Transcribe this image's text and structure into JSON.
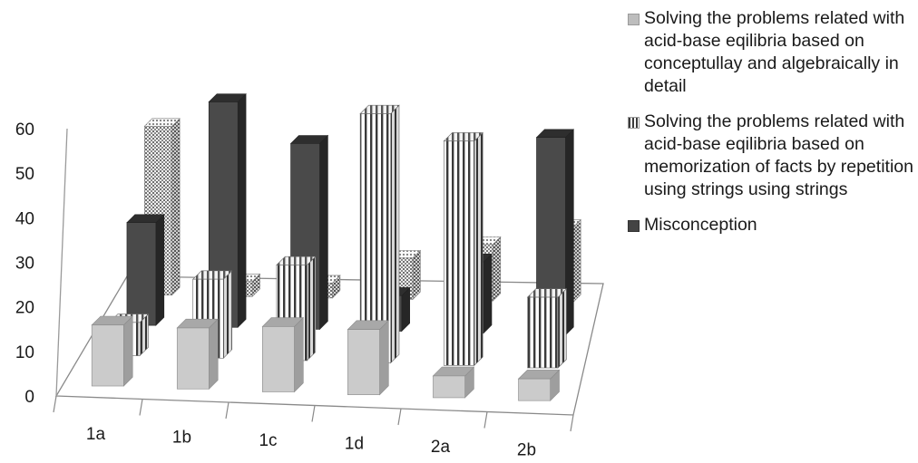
{
  "chart_data": {
    "type": "bar",
    "categories": [
      "1a",
      "1b",
      "1c",
      "1d",
      "2a",
      "2b"
    ],
    "series": [
      {
        "name": "Solving the problems related with acid-base eqilibria based on conceptullay and algebraically in detail",
        "values": [
          14,
          14,
          15,
          15,
          5,
          5
        ],
        "color": "#c4c4c4",
        "pattern": "solid-light"
      },
      {
        "name": "Solving the problems related with acid-base eqilibria based on memorization of facts by repetition using strings using strings",
        "values": [
          8,
          19,
          23,
          60,
          54,
          17
        ],
        "color": "#ffffff",
        "pattern": "vertical-stripes"
      },
      {
        "name": "Misconception",
        "values": [
          26,
          57,
          47,
          9,
          18,
          50
        ],
        "color": "#4a4a4a",
        "pattern": "solid-dark"
      },
      {
        "name": "",
        "values": [
          45,
          4,
          4,
          11,
          15,
          20
        ],
        "color": "#e0e0e0",
        "pattern": "dotted"
      }
    ],
    "y_ticks": [
      "0",
      "10",
      "20",
      "30",
      "40",
      "50",
      "60"
    ],
    "ylim": [
      0,
      60
    ],
    "grid": false,
    "legend_position": "right",
    "view": "3d-perspective"
  }
}
